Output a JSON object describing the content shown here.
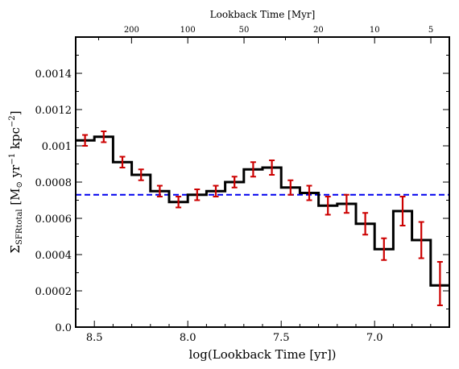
{
  "chart_data": {
    "type": "line",
    "step": true,
    "xlabel": "log(Lookback Time [yr])",
    "ylabel": "Σ_SFRtotal [M⊙ yr⁻¹ kpc⁻²]",
    "ylabel_parts": {
      "sigma": "Σ",
      "sigma_sub": "SFRtotal",
      "unit_open": " [M",
      "sun": "⊙",
      "unit_mid": " yr",
      "exp1": "−1",
      "unit_mid2": " kpc",
      "exp2": "−2",
      "unit_close": "]"
    },
    "top_xlabel": "Lookback Time [Myr]",
    "x_reversed": true,
    "xlim": [
      8.6,
      6.6
    ],
    "ylim": [
      0.0,
      0.0016
    ],
    "x_ticks": [
      8.5,
      8.0,
      7.5,
      7.0
    ],
    "x_tick_labels": [
      "8.5",
      "8.0",
      "7.5",
      "7.0"
    ],
    "y_ticks": [
      0.0,
      0.0002,
      0.0004,
      0.0006,
      0.0008,
      0.001,
      0.0012,
      0.0014
    ],
    "y_tick_labels": [
      "0.0",
      "0.0002",
      "0.0004",
      "0.0006",
      "0.0008",
      "0.001",
      "0.0012",
      "0.0014"
    ],
    "top_ticks_myr": [
      200,
      100,
      50,
      20,
      10,
      5
    ],
    "top_tick_labels": [
      "200",
      "100",
      "50",
      "20",
      "10",
      "5"
    ],
    "bin_edges": [
      8.6,
      8.5,
      8.4,
      8.3,
      8.2,
      8.1,
      8.0,
      7.9,
      7.8,
      7.7,
      7.6,
      7.5,
      7.4,
      7.3,
      7.2,
      7.1,
      7.0,
      6.9,
      6.8,
      6.7,
      6.6
    ],
    "series": [
      {
        "values": [
          0.00103,
          0.00105,
          0.00091,
          0.00084,
          0.00075,
          0.00069,
          0.00073,
          0.00075,
          0.0008,
          0.00087,
          0.00088,
          0.00077,
          0.00074,
          0.00067,
          0.00068,
          0.00057,
          0.00043,
          0.00064,
          0.00048,
          0.00023
        ],
        "color": "#000000"
      },
      {
        "values": [
          0.00103,
          0.00105,
          0.00091,
          0.00084,
          0.00075,
          0.00069,
          0.00073,
          0.00075,
          0.0008,
          0.00087,
          0.00088,
          0.00077,
          0.00074,
          0.00067,
          0.00068,
          0.00057,
          0.00043,
          0.00064,
          0.00048,
          0.00024
        ],
        "errors": [
          3e-05,
          3e-05,
          3e-05,
          3e-05,
          3e-05,
          3e-05,
          3e-05,
          3e-05,
          3e-05,
          4e-05,
          4e-05,
          4e-05,
          4e-05,
          5e-05,
          5e-05,
          6e-05,
          6e-05,
          8e-05,
          0.0001,
          0.00012
        ],
        "color": "#cc0000"
      },
      {
        "y": 0.00073,
        "linestyle": "dashed",
        "color": "#0000ee"
      }
    ]
  }
}
